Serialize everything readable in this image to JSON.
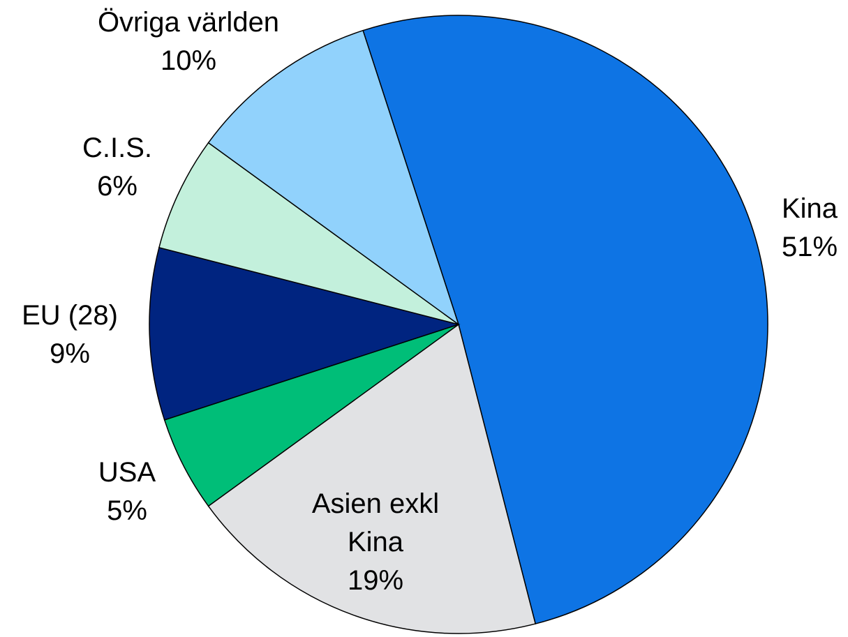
{
  "chart_data": {
    "type": "pie",
    "categories": [
      "Kina",
      "Asien exkl Kina",
      "USA",
      "EU (28)",
      "C.I.S.",
      "Övriga världen"
    ],
    "values": [
      51,
      19,
      5,
      9,
      6,
      10
    ],
    "value_labels": [
      "51%",
      "19%",
      "5%",
      "9%",
      "6%",
      "10%"
    ],
    "colors": [
      "#0e74e4",
      "#e1e2e4",
      "#00be78",
      "#002480",
      "#c3f0dc",
      "#91d2fc"
    ]
  }
}
